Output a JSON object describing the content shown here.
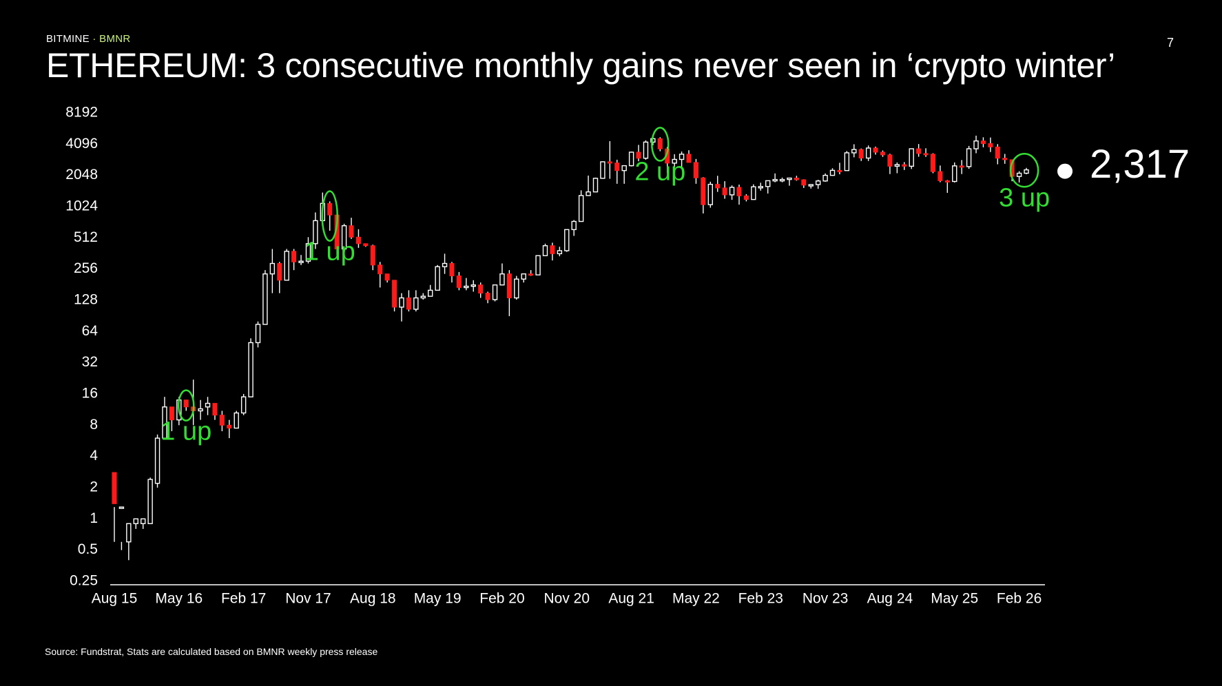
{
  "header": {
    "brand": "BITMINE",
    "separator": "·",
    "ticker": "BMNR",
    "page_number": "7",
    "title": "ETHEREUM: 3 consecutive monthly gains never seen in ‘crypto winter’"
  },
  "footer": {
    "source": "Source: Fundstrat, Stats are calculated based on BMNR weekly press release"
  },
  "colors": {
    "background": "#000000",
    "up": "#ffffff",
    "down": "#ff1a1a",
    "annotation": "#33dd33",
    "accent": "#c8f27a"
  },
  "chart_data": {
    "type": "candlestick",
    "scale": "log2",
    "ylim": [
      0.25,
      8192
    ],
    "yticks": [
      "0.25",
      "0.5",
      "1",
      "2",
      "4",
      "8",
      "16",
      "32",
      "64",
      "128",
      "256",
      "512",
      "1024",
      "2048",
      "4096",
      "8192"
    ],
    "xticks": [
      "Aug 15",
      "May 16",
      "Feb 17",
      "Nov 17",
      "Aug 18",
      "May 19",
      "Feb 20",
      "Nov 20",
      "Aug 21",
      "May 22",
      "Feb 23",
      "Nov 23",
      "Aug 24",
      "May 25",
      "Feb 26"
    ],
    "xrange": [
      "2015-08",
      "2026-03"
    ],
    "current_price_label": "2,317",
    "current_price": 2317,
    "annotations": [
      {
        "text": "1 up",
        "at": "2016-06"
      },
      {
        "text": "1 up",
        "at": "2018-02"
      },
      {
        "text": "2 up",
        "at": "2021-12"
      },
      {
        "text": "3 up",
        "at": "2026-01"
      }
    ],
    "candles": [
      [
        "2015-08",
        2.8,
        1.3,
        0.6,
        1.4
      ],
      [
        "2015-09",
        1.3,
        0.6,
        0.5,
        1.3
      ],
      [
        "2015-10",
        0.6,
        0.4,
        0.9,
        0.9
      ],
      [
        "2015-11",
        0.9,
        0.8,
        0.9,
        1.0
      ],
      [
        "2015-12",
        0.9,
        0.8,
        0.9,
        1.0
      ],
      [
        "2016-01",
        0.9,
        0.9,
        2.5,
        2.4
      ],
      [
        "2016-02",
        2.2,
        2.0,
        6.5,
        6.0
      ],
      [
        "2016-03",
        6.0,
        6.0,
        15.0,
        12.0
      ],
      [
        "2016-04",
        12.0,
        7.0,
        12.0,
        9.0
      ],
      [
        "2016-05",
        9.0,
        8.0,
        15.0,
        14.0
      ],
      [
        "2016-06",
        14.0,
        11.0,
        14.0,
        12.0
      ],
      [
        "2016-07",
        12.0,
        8.0,
        22.0,
        11.0
      ],
      [
        "2016-08",
        11.0,
        9.0,
        14.0,
        11.5
      ],
      [
        "2016-09",
        12.0,
        10.0,
        15.0,
        13.0
      ],
      [
        "2016-10",
        13.0,
        9.0,
        13.0,
        10.0
      ],
      [
        "2016-11",
        10.0,
        7.0,
        11.0,
        8.0
      ],
      [
        "2016-12",
        8.0,
        6.0,
        9.0,
        7.5
      ],
      [
        "2017-01",
        7.5,
        7.5,
        11.0,
        10.5
      ],
      [
        "2017-02",
        10.5,
        10.0,
        16.0,
        15.0
      ],
      [
        "2017-03",
        15.0,
        15.0,
        55.0,
        50.0
      ],
      [
        "2017-04",
        50.0,
        45.0,
        80.0,
        75.0
      ],
      [
        "2017-05",
        75.0,
        75.0,
        250.0,
        230.0
      ],
      [
        "2017-06",
        230.0,
        150.0,
        400.0,
        290.0
      ],
      [
        "2017-07",
        290.0,
        150.0,
        300.0,
        200.0
      ],
      [
        "2017-08",
        200.0,
        200.0,
        400.0,
        380.0
      ],
      [
        "2017-09",
        380.0,
        250.0,
        400.0,
        300.0
      ],
      [
        "2017-10",
        300.0,
        280.0,
        350.0,
        305.0
      ],
      [
        "2017-11",
        305.0,
        290.0,
        520.0,
        450.0
      ],
      [
        "2017-12",
        450.0,
        400.0,
        900.0,
        750.0
      ],
      [
        "2018-01",
        750.0,
        700.0,
        1400.0,
        1100.0
      ],
      [
        "2018-02",
        1100.0,
        600.0,
        1150.0,
        850.0
      ],
      [
        "2018-03",
        850.0,
        350.0,
        870.0,
        400.0
      ],
      [
        "2018-04",
        400.0,
        370.0,
        700.0,
        670.0
      ],
      [
        "2018-05",
        670.0,
        500.0,
        800.0,
        520.0
      ],
      [
        "2018-06",
        520.0,
        410.0,
        620.0,
        450.0
      ],
      [
        "2018-07",
        450.0,
        420.0,
        450.0,
        430.0
      ],
      [
        "2018-08",
        430.0,
        250.0,
        440.0,
        280.0
      ],
      [
        "2018-09",
        280.0,
        170.0,
        300.0,
        230.0
      ],
      [
        "2018-10",
        230.0,
        190.0,
        230.0,
        200.0
      ],
      [
        "2018-11",
        200.0,
        100.0,
        200.0,
        110.0
      ],
      [
        "2018-12",
        110.0,
        80.0,
        150.0,
        135.0
      ],
      [
        "2019-01",
        135.0,
        100.0,
        160.0,
        105.0
      ],
      [
        "2019-02",
        105.0,
        100.0,
        160.0,
        135.0
      ],
      [
        "2019-03",
        135.0,
        130.0,
        150.0,
        140.0
      ],
      [
        "2019-04",
        140.0,
        140.0,
        180.0,
        160.0
      ],
      [
        "2019-05",
        160.0,
        160.0,
        280.0,
        270.0
      ],
      [
        "2019-06",
        270.0,
        230.0,
        360.0,
        290.0
      ],
      [
        "2019-07",
        290.0,
        190.0,
        300.0,
        220.0
      ],
      [
        "2019-08",
        220.0,
        160.0,
        240.0,
        170.0
      ],
      [
        "2019-09",
        170.0,
        160.0,
        210.0,
        175.0
      ],
      [
        "2019-10",
        175.0,
        155.0,
        200.0,
        180.0
      ],
      [
        "2019-11",
        180.0,
        135.0,
        190.0,
        150.0
      ],
      [
        "2019-12",
        150.0,
        120.0,
        155.0,
        130.0
      ],
      [
        "2020-01",
        130.0,
        125.0,
        180.0,
        180.0
      ],
      [
        "2020-02",
        180.0,
        180.0,
        290.0,
        230.0
      ],
      [
        "2020-03",
        230.0,
        90.0,
        250.0,
        135.0
      ],
      [
        "2020-04",
        135.0,
        130.0,
        220.0,
        205.0
      ],
      [
        "2020-05",
        205.0,
        190.0,
        230.0,
        230.0
      ],
      [
        "2020-06",
        230.0,
        220.0,
        250.0,
        225.0
      ],
      [
        "2020-07",
        225.0,
        225.0,
        345.0,
        345.0
      ],
      [
        "2020-08",
        345.0,
        345.0,
        450.0,
        430.0
      ],
      [
        "2020-09",
        430.0,
        310.0,
        460.0,
        360.0
      ],
      [
        "2020-10",
        360.0,
        340.0,
        420.0,
        385.0
      ],
      [
        "2020-11",
        385.0,
        375.0,
        610.0,
        615.0
      ],
      [
        "2020-12",
        615.0,
        535.0,
        760.0,
        737.0
      ],
      [
        "2021-01",
        737.0,
        730.0,
        1470.0,
        1310.0
      ],
      [
        "2021-02",
        1310.0,
        1300.0,
        2040.0,
        1420.0
      ],
      [
        "2021-03",
        1420.0,
        1420.0,
        1950.0,
        1920.0
      ],
      [
        "2021-04",
        1920.0,
        1900.0,
        2800.0,
        2770.0
      ],
      [
        "2021-05",
        2770.0,
        1900.0,
        4380.0,
        2700.0
      ],
      [
        "2021-06",
        2700.0,
        1700.0,
        2900.0,
        2280.0
      ],
      [
        "2021-07",
        2280.0,
        1700.0,
        2560.0,
        2540.0
      ],
      [
        "2021-08",
        2540.0,
        2500.0,
        3470.0,
        3430.0
      ],
      [
        "2021-09",
        3430.0,
        2800.0,
        4030.0,
        3000.0
      ],
      [
        "2021-10",
        3000.0,
        2900.0,
        4460.0,
        4290.0
      ],
      [
        "2021-11",
        4290.0,
        4000.0,
        4870.0,
        4630.0
      ],
      [
        "2021-12",
        4630.0,
        3500.0,
        4780.0,
        3690.0
      ],
      [
        "2022-01",
        3690.0,
        2160.0,
        3850.0,
        2690.0
      ],
      [
        "2022-02",
        2690.0,
        2300.0,
        3280.0,
        2920.0
      ],
      [
        "2022-03",
        2920.0,
        2450.0,
        3480.0,
        3280.0
      ],
      [
        "2022-04",
        3280.0,
        2780.0,
        3580.0,
        2730.0
      ],
      [
        "2022-05",
        2730.0,
        1700.0,
        2950.0,
        1940.0
      ],
      [
        "2022-06",
        1940.0,
        880.0,
        1970.0,
        1070.0
      ],
      [
        "2022-07",
        1070.0,
        1000.0,
        1780.0,
        1680.0
      ],
      [
        "2022-08",
        1680.0,
        1420.0,
        2030.0,
        1550.0
      ],
      [
        "2022-09",
        1550.0,
        1220.0,
        1800.0,
        1330.0
      ],
      [
        "2022-10",
        1330.0,
        1190.0,
        1640.0,
        1570.0
      ],
      [
        "2022-11",
        1570.0,
        1070.0,
        1670.0,
        1300.0
      ],
      [
        "2022-12",
        1300.0,
        1150.0,
        1350.0,
        1200.0
      ],
      [
        "2023-01",
        1200.0,
        1190.0,
        1680.0,
        1590.0
      ],
      [
        "2023-02",
        1590.0,
        1460.0,
        1740.0,
        1600.0
      ],
      [
        "2023-03",
        1600.0,
        1370.0,
        1830.0,
        1820.0
      ],
      [
        "2023-04",
        1820.0,
        1760.0,
        2140.0,
        1870.0
      ],
      [
        "2023-05",
        1870.0,
        1760.0,
        1950.0,
        1870.0
      ],
      [
        "2023-06",
        1870.0,
        1630.0,
        1930.0,
        1930.0
      ],
      [
        "2023-07",
        1930.0,
        1820.0,
        2030.0,
        1860.0
      ],
      [
        "2023-08",
        1860.0,
        1550.0,
        1880.0,
        1650.0
      ],
      [
        "2023-09",
        1650.0,
        1530.0,
        1680.0,
        1670.0
      ],
      [
        "2023-10",
        1670.0,
        1520.0,
        1860.0,
        1810.0
      ],
      [
        "2023-11",
        1810.0,
        1780.0,
        2140.0,
        2050.0
      ],
      [
        "2023-12",
        2050.0,
        2030.0,
        2400.0,
        2290.0
      ],
      [
        "2024-01",
        2290.0,
        2100.0,
        2710.0,
        2280.0
      ],
      [
        "2024-02",
        2280.0,
        2280.0,
        3520.0,
        3380.0
      ],
      [
        "2024-03",
        3380.0,
        3060.0,
        4090.0,
        3640.0
      ],
      [
        "2024-04",
        3640.0,
        2820.0,
        3720.0,
        3010.0
      ],
      [
        "2024-05",
        3010.0,
        2820.0,
        3980.0,
        3760.0
      ],
      [
        "2024-06",
        3760.0,
        3250.0,
        3880.0,
        3430.0
      ],
      [
        "2024-07",
        3430.0,
        3090.0,
        3560.0,
        3230.0
      ],
      [
        "2024-08",
        3230.0,
        2110.0,
        3310.0,
        2510.0
      ],
      [
        "2024-09",
        2510.0,
        2150.0,
        2730.0,
        2600.0
      ],
      [
        "2024-10",
        2600.0,
        2310.0,
        2750.0,
        2510.0
      ],
      [
        "2024-11",
        2510.0,
        2360.0,
        3680.0,
        3700.0
      ],
      [
        "2024-12",
        3700.0,
        3100.0,
        4110.0,
        3330.0
      ],
      [
        "2025-01",
        3330.0,
        3090.0,
        3740.0,
        3280.0
      ],
      [
        "2025-02",
        3280.0,
        2150.0,
        3350.0,
        2230.0
      ],
      [
        "2025-03",
        2230.0,
        1760.0,
        2550.0,
        1820.0
      ],
      [
        "2025-04",
        1820.0,
        1390.0,
        1850.0,
        1790.0
      ],
      [
        "2025-05",
        1790.0,
        1750.0,
        2730.0,
        2530.0
      ],
      [
        "2025-06",
        2530.0,
        2110.0,
        2880.0,
        2490.0
      ],
      [
        "2025-07",
        2490.0,
        2370.0,
        3940.0,
        3700.0
      ],
      [
        "2025-08",
        3700.0,
        3350.0,
        4950.0,
        4400.0
      ],
      [
        "2025-09",
        4400.0,
        3820.0,
        4770.0,
        4150.0
      ],
      [
        "2025-10",
        4150.0,
        3440.0,
        4750.0,
        3850.0
      ],
      [
        "2025-11",
        3850.0,
        2620.0,
        4100.0,
        3000.0
      ],
      [
        "2025-12",
        3000.0,
        2650.0,
        3300.0,
        2900.0
      ],
      [
        "2026-01",
        2900.0,
        1800.0,
        2920.0,
        2000.0
      ],
      [
        "2026-02",
        2000.0,
        1750.0,
        2250.0,
        2150.0
      ],
      [
        "2026-03",
        2150.0,
        2100.0,
        2420.0,
        2317.0
      ]
    ]
  }
}
